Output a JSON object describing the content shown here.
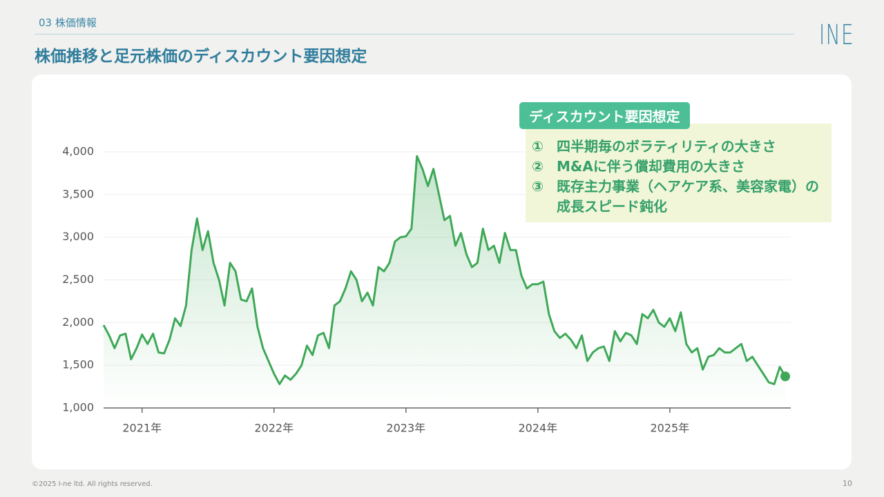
{
  "section": "03 株価情報",
  "title": "株価推移と足元株価のディスカウント要因想定",
  "logo": "INE",
  "callout": {
    "heading": "ディスカウント要因想定",
    "items": [
      {
        "marker": "①",
        "text": "四半期毎のボラティリティの大きさ"
      },
      {
        "marker": "②",
        "text": "M&Aに伴う償却費用の大きさ"
      },
      {
        "marker": "③",
        "text": "既存主力事業（ヘアケア系、美容家電）の成長スピード鈍化"
      }
    ]
  },
  "footer": "©2025 I-ne ltd. All rights reserved.",
  "page_number": "10",
  "chart_data": {
    "type": "line",
    "color": "#3ea857",
    "area": true,
    "grid": true,
    "ylim": [
      1000,
      4000
    ],
    "yticks": [
      {
        "value": 1000,
        "label": "1,000"
      },
      {
        "value": 1500,
        "label": "1,500"
      },
      {
        "value": 2000,
        "label": "2,000"
      },
      {
        "value": 2500,
        "label": "2,500"
      },
      {
        "value": 3000,
        "label": "3,000"
      },
      {
        "value": 3500,
        "label": "3,500"
      },
      {
        "value": 4000,
        "label": "4,000"
      }
    ],
    "categories": [
      null,
      null,
      null,
      null,
      null,
      null,
      null,
      "2021年",
      null,
      null,
      null,
      null,
      null,
      null,
      null,
      null,
      null,
      null,
      null,
      null,
      null,
      null,
      null,
      null,
      null,
      null,
      null,
      null,
      null,
      null,
      null,
      "2022年",
      null,
      null,
      null,
      null,
      null,
      null,
      null,
      null,
      null,
      null,
      null,
      null,
      null,
      null,
      null,
      null,
      null,
      null,
      null,
      null,
      null,
      null,
      null,
      "2023年",
      null,
      null,
      null,
      null,
      null,
      null,
      null,
      null,
      null,
      null,
      null,
      null,
      null,
      null,
      null,
      null,
      null,
      null,
      null,
      null,
      null,
      null,
      null,
      "2024年",
      null,
      null,
      null,
      null,
      null,
      null,
      null,
      null,
      null,
      null,
      null,
      null,
      null,
      null,
      null,
      null,
      null,
      null,
      null,
      null,
      null,
      null,
      null,
      "2025年",
      null,
      null,
      null,
      null,
      null,
      null,
      null,
      null,
      null,
      null,
      null,
      null,
      null,
      null,
      null,
      null,
      null,
      null,
      null,
      null,
      null
    ],
    "values": [
      1970,
      1850,
      1700,
      1850,
      1870,
      1570,
      1700,
      1860,
      1750,
      1870,
      1650,
      1640,
      1800,
      2050,
      1960,
      2200,
      2850,
      3220,
      2850,
      3070,
      2700,
      2500,
      2200,
      2700,
      2600,
      2270,
      2250,
      2400,
      1950,
      1700,
      1550,
      1400,
      1280,
      1380,
      1330,
      1400,
      1500,
      1730,
      1620,
      1850,
      1880,
      1700,
      2200,
      2250,
      2400,
      2600,
      2500,
      2250,
      2350,
      2200,
      2650,
      2600,
      2700,
      2950,
      3000,
      3010,
      3100,
      3950,
      3800,
      3600,
      3800,
      3500,
      3200,
      3250,
      2900,
      3050,
      2800,
      2650,
      2700,
      3100,
      2850,
      2900,
      2700,
      3050,
      2850,
      2850,
      2550,
      2400,
      2450,
      2450,
      2480,
      2100,
      1900,
      1820,
      1870,
      1800,
      1700,
      1850,
      1550,
      1650,
      1700,
      1720,
      1550,
      1900,
      1780,
      1880,
      1850,
      1750,
      2100,
      2050,
      2150,
      2000,
      1950,
      2050,
      1900,
      2120,
      1750,
      1650,
      1700,
      1450,
      1600,
      1620,
      1700,
      1650,
      1650,
      1700,
      1750,
      1550,
      1600,
      1500,
      1400,
      1300,
      1280,
      1480,
      1370
    ]
  }
}
